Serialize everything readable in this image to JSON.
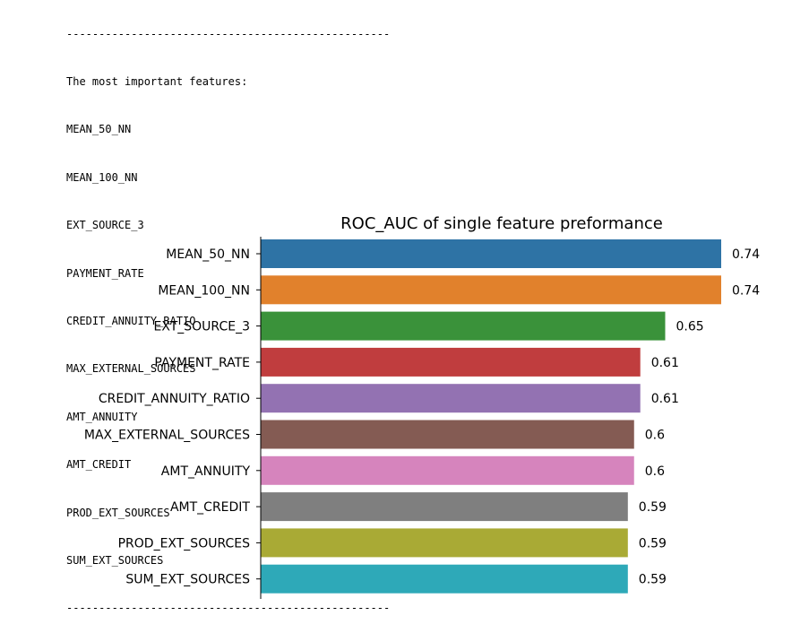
{
  "console": {
    "separator_top": "--------------------------------------------------",
    "heading": "The most important features:",
    "features": [
      "MEAN_50_NN",
      "MEAN_100_NN",
      "EXT_SOURCE_3",
      "PAYMENT_RATE",
      "CREDIT_ANNUITY_RATIO",
      "MAX_EXTERNAL_SOURCES",
      "AMT_ANNUITY",
      "AMT_CREDIT",
      "PROD_EXT_SOURCES",
      "SUM_EXT_SOURCES"
    ],
    "separator_bottom": "--------------------------------------------------"
  },
  "chart_data": {
    "type": "bar",
    "orientation": "horizontal",
    "title": "ROC_AUC of single feature preformance",
    "xlabel": "",
    "ylabel": "",
    "xlim": [
      0,
      0.74
    ],
    "grid": false,
    "legend": "none",
    "categories": [
      "MEAN_50_NN",
      "MEAN_100_NN",
      "EXT_SOURCE_3",
      "PAYMENT_RATE",
      "CREDIT_ANNUITY_RATIO",
      "MAX_EXTERNAL_SOURCES",
      "AMT_ANNUITY",
      "AMT_CREDIT",
      "PROD_EXT_SOURCES",
      "SUM_EXT_SOURCES"
    ],
    "values": [
      0.74,
      0.74,
      0.65,
      0.61,
      0.61,
      0.6,
      0.6,
      0.59,
      0.59,
      0.59
    ],
    "value_labels": [
      "0.74",
      "0.74",
      "0.65",
      "0.61",
      "0.61",
      "0.6",
      "0.6",
      "0.59",
      "0.59",
      "0.59"
    ],
    "colors": [
      "#2e73a5",
      "#e1812c",
      "#3a923a",
      "#c03d3e",
      "#9372b2",
      "#845b53",
      "#d684bd",
      "#7f7f7f",
      "#a9aa35",
      "#2ea9b8"
    ]
  }
}
